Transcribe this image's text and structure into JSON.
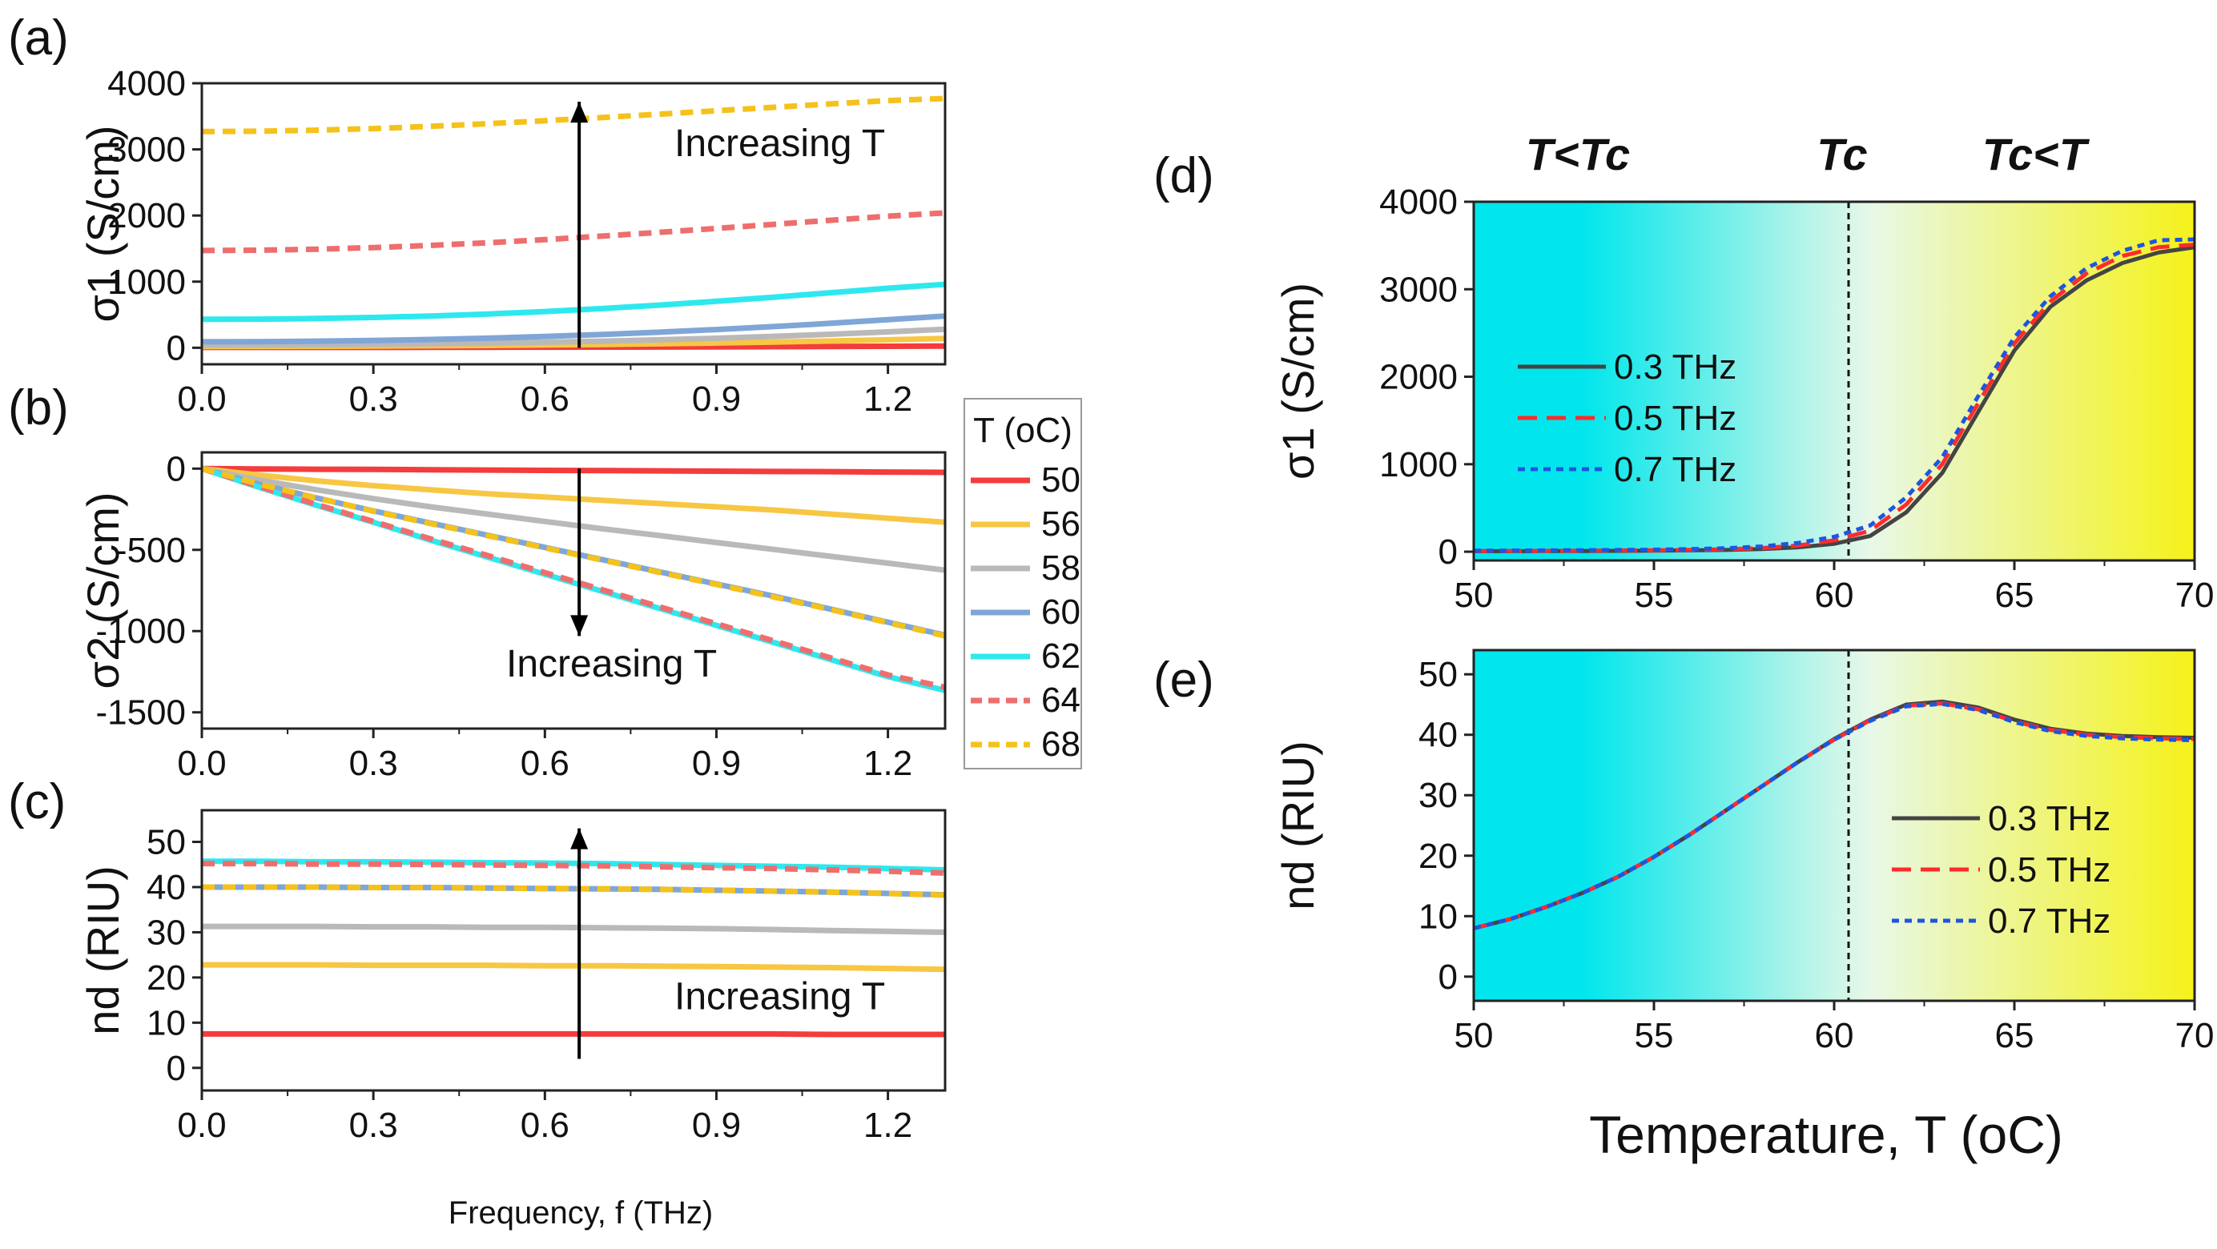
{
  "figure": {
    "panel_labels": [
      "(a)",
      "(b)",
      "(c)",
      "(d)",
      "(e)"
    ],
    "left_xlabel": "Frequency, f (THz)",
    "right_xlabel": "Temperature, T (oC)",
    "annotation": "Increasing T",
    "legend_title": "T (oC)",
    "regions": [
      "T<Tc",
      "Tc",
      "Tc<T"
    ],
    "colors": {
      "t50": "#f43c3c",
      "t56": "#f7c744",
      "t58": "#b9b9b9",
      "t60": "#7fa6d6",
      "t62": "#2ee8ee",
      "t64": "#ee6e6e",
      "t68": "#f5c21b",
      "f03": "#444444",
      "f05": "#ff2b2b",
      "f07": "#1e55e0",
      "bg_cold": "#00e6ec",
      "bg_mid": "#e8f8e8",
      "bg_hot": "#f5f219"
    }
  },
  "chart_data": [
    {
      "id": "a",
      "type": "line",
      "title": "",
      "xlabel": "",
      "ylabel": "σ1 (S/cm)",
      "xlim": [
        0,
        1.3
      ],
      "ylim": [
        -250,
        4000
      ],
      "xticks": [
        "0.0",
        "0.3",
        "0.6",
        "0.9",
        "1.2"
      ],
      "yticks": [
        "0",
        "1000",
        "2000",
        "3000",
        "4000"
      ],
      "x": [
        0,
        0.1,
        0.2,
        0.3,
        0.4,
        0.5,
        0.6,
        0.7,
        0.8,
        0.9,
        1.0,
        1.1,
        1.2,
        1.3
      ],
      "series": [
        {
          "name": "50",
          "style": "solid",
          "values": [
            5,
            5,
            6,
            6,
            7,
            8,
            9,
            10,
            12,
            14,
            16,
            19,
            22,
            25
          ]
        },
        {
          "name": "56",
          "style": "solid",
          "values": [
            20,
            21,
            23,
            26,
            30,
            35,
            42,
            50,
            60,
            72,
            86,
            102,
            120,
            140
          ]
        },
        {
          "name": "58",
          "style": "solid",
          "values": [
            40,
            42,
            46,
            52,
            60,
            70,
            84,
            100,
            120,
            144,
            172,
            204,
            240,
            280
          ]
        },
        {
          "name": "60",
          "style": "solid",
          "values": [
            90,
            93,
            100,
            110,
            125,
            145,
            170,
            200,
            235,
            275,
            320,
            370,
            425,
            480
          ]
        },
        {
          "name": "62",
          "style": "solid",
          "values": [
            430,
            433,
            442,
            458,
            480,
            510,
            548,
            593,
            645,
            703,
            765,
            832,
            900,
            960
          ]
        },
        {
          "name": "64",
          "style": "dash",
          "values": [
            1470,
            1475,
            1490,
            1515,
            1548,
            1588,
            1635,
            1688,
            1745,
            1805,
            1866,
            1928,
            1990,
            2040
          ]
        },
        {
          "name": "68",
          "style": "dash",
          "values": [
            3270,
            3275,
            3290,
            3315,
            3348,
            3388,
            3433,
            3482,
            3533,
            3585,
            3637,
            3688,
            3738,
            3770
          ]
        }
      ],
      "annotation": {
        "text": "Increasing T",
        "arrow": "up",
        "x": 0.66
      }
    },
    {
      "id": "b",
      "type": "line",
      "title": "",
      "xlabel": "",
      "ylabel": "σ2 (S/cm)",
      "xlim": [
        0,
        1.3
      ],
      "ylim": [
        -1600,
        100
      ],
      "xticks": [
        "0.0",
        "0.3",
        "0.6",
        "0.9",
        "1.2"
      ],
      "yticks": [
        "0",
        "-500",
        "-1000",
        "-1500"
      ],
      "x": [
        0,
        0.1,
        0.2,
        0.3,
        0.4,
        0.5,
        0.6,
        0.7,
        0.8,
        0.9,
        1.0,
        1.1,
        1.2,
        1.3
      ],
      "series": [
        {
          "name": "50",
          "style": "solid",
          "values": [
            0,
            -2,
            -4,
            -5,
            -7,
            -9,
            -11,
            -12,
            -14,
            -16,
            -18,
            -19,
            -21,
            -23
          ]
        },
        {
          "name": "56",
          "style": "solid",
          "values": [
            0,
            -40,
            -75,
            -105,
            -130,
            -155,
            -175,
            -195,
            -215,
            -235,
            -255,
            -280,
            -305,
            -330
          ]
        },
        {
          "name": "58",
          "style": "solid",
          "values": [
            0,
            -70,
            -130,
            -185,
            -235,
            -280,
            -325,
            -370,
            -412,
            -455,
            -497,
            -540,
            -582,
            -625
          ]
        },
        {
          "name": "60",
          "style": "solid",
          "values": [
            0,
            -95,
            -180,
            -260,
            -335,
            -410,
            -485,
            -560,
            -635,
            -710,
            -785,
            -865,
            -945,
            -1025
          ]
        },
        {
          "name": "62",
          "style": "solid",
          "values": [
            0,
            -115,
            -225,
            -330,
            -440,
            -545,
            -650,
            -755,
            -860,
            -965,
            -1070,
            -1175,
            -1280,
            -1365
          ]
        },
        {
          "name": "64",
          "style": "dash",
          "values": [
            0,
            -110,
            -220,
            -325,
            -432,
            -535,
            -640,
            -745,
            -850,
            -955,
            -1060,
            -1165,
            -1270,
            -1345
          ]
        },
        {
          "name": "68",
          "style": "dash",
          "values": [
            0,
            -95,
            -180,
            -262,
            -338,
            -413,
            -488,
            -563,
            -638,
            -713,
            -790,
            -868,
            -948,
            -1030
          ]
        }
      ],
      "annotation": {
        "text": "Increasing T",
        "arrow": "down",
        "x": 0.66
      }
    },
    {
      "id": "c",
      "type": "line",
      "title": "",
      "xlabel": "Frequency, f (THz)",
      "ylabel": "nd (RIU)",
      "xlim": [
        0,
        1.3
      ],
      "ylim": [
        -5,
        57
      ],
      "xticks": [
        "0.0",
        "0.3",
        "0.6",
        "0.9",
        "1.2"
      ],
      "yticks": [
        "0",
        "10",
        "20",
        "30",
        "40",
        "50"
      ],
      "x": [
        0,
        0.1,
        0.2,
        0.3,
        0.4,
        0.5,
        0.6,
        0.7,
        0.8,
        0.9,
        1.0,
        1.1,
        1.2,
        1.3
      ],
      "series": [
        {
          "name": "50",
          "style": "solid",
          "values": [
            7.5,
            7.5,
            7.5,
            7.5,
            7.5,
            7.5,
            7.5,
            7.5,
            7.5,
            7.5,
            7.5,
            7.4,
            7.4,
            7.4
          ]
        },
        {
          "name": "56",
          "style": "solid",
          "values": [
            22.8,
            22.8,
            22.8,
            22.7,
            22.7,
            22.7,
            22.6,
            22.6,
            22.5,
            22.4,
            22.3,
            22.2,
            22.0,
            21.8
          ]
        },
        {
          "name": "58",
          "style": "solid",
          "values": [
            31.3,
            31.3,
            31.3,
            31.2,
            31.2,
            31.1,
            31.1,
            31.0,
            30.9,
            30.8,
            30.6,
            30.4,
            30.2,
            30.0
          ]
        },
        {
          "name": "60",
          "style": "solid",
          "values": [
            40.0,
            40.0,
            40.0,
            39.9,
            39.9,
            39.8,
            39.7,
            39.6,
            39.5,
            39.3,
            39.1,
            38.9,
            38.6,
            38.3
          ]
        },
        {
          "name": "62",
          "style": "solid",
          "values": [
            45.7,
            45.7,
            45.6,
            45.6,
            45.5,
            45.4,
            45.3,
            45.2,
            45.0,
            44.8,
            44.6,
            44.4,
            44.1,
            43.8
          ]
        },
        {
          "name": "64",
          "style": "dash",
          "values": [
            45.2,
            45.2,
            45.1,
            45.1,
            45.0,
            44.9,
            44.8,
            44.7,
            44.5,
            44.3,
            44.1,
            43.8,
            43.5,
            43.1
          ]
        },
        {
          "name": "68",
          "style": "dash",
          "values": [
            40.0,
            40.0,
            40.0,
            39.9,
            39.9,
            39.8,
            39.7,
            39.6,
            39.5,
            39.3,
            39.1,
            38.9,
            38.6,
            38.2
          ]
        }
      ],
      "annotation": {
        "text": "Increasing T",
        "arrow": "up",
        "x": 0.66
      }
    },
    {
      "id": "d",
      "type": "line",
      "title": "",
      "xlabel": "",
      "ylabel": "σ1 (S/cm)",
      "xlim": [
        50,
        70
      ],
      "ylim": [
        -100,
        4000
      ],
      "xticks": [
        "50",
        "55",
        "60",
        "65",
        "70"
      ],
      "yticks": [
        "0",
        "1000",
        "2000",
        "3000",
        "4000"
      ],
      "vline": 60.4,
      "x": [
        50,
        51,
        52,
        53,
        54,
        55,
        56,
        57,
        58,
        59,
        60,
        61,
        62,
        63,
        64,
        65,
        66,
        67,
        68,
        69,
        70
      ],
      "series": [
        {
          "name": "0.3 THz",
          "style": "solid",
          "values": [
            5,
            6,
            7,
            8,
            10,
            12,
            15,
            20,
            30,
            50,
            90,
            180,
            450,
            900,
            1600,
            2300,
            2800,
            3100,
            3300,
            3420,
            3480
          ]
        },
        {
          "name": "0.5 THz",
          "style": "dash",
          "values": [
            8,
            9,
            10,
            12,
            14,
            17,
            21,
            28,
            42,
            70,
            130,
            240,
            540,
            1000,
            1700,
            2380,
            2860,
            3180,
            3380,
            3480,
            3510
          ]
        },
        {
          "name": "0.7 THz",
          "style": "dot",
          "values": [
            12,
            13,
            15,
            17,
            20,
            24,
            30,
            40,
            60,
            100,
            170,
            300,
            620,
            1080,
            1780,
            2450,
            2920,
            3240,
            3440,
            3560,
            3570
          ]
        }
      ]
    },
    {
      "id": "e",
      "type": "line",
      "title": "",
      "xlabel": "Temperature, T (oC)",
      "ylabel": "nd (RIU)",
      "xlim": [
        50,
        70
      ],
      "ylim": [
        -4,
        54
      ],
      "xticks": [
        "50",
        "55",
        "60",
        "65",
        "70"
      ],
      "yticks": [
        "0",
        "10",
        "20",
        "30",
        "40",
        "50"
      ],
      "vline": 60.4,
      "x": [
        50,
        51,
        52,
        53,
        54,
        55,
        56,
        57,
        58,
        59,
        60,
        61,
        62,
        63,
        64,
        65,
        66,
        67,
        68,
        69,
        70
      ],
      "series": [
        {
          "name": "0.3 THz",
          "style": "solid",
          "values": [
            8,
            9.5,
            11.5,
            13.8,
            16.5,
            19.8,
            23.5,
            27.5,
            31.5,
            35.5,
            39.3,
            42.5,
            45.0,
            45.5,
            44.5,
            42.5,
            41.0,
            40.2,
            39.8,
            39.6,
            39.5
          ]
        },
        {
          "name": "0.5 THz",
          "style": "dash",
          "values": [
            8,
            9.5,
            11.5,
            13.8,
            16.5,
            19.8,
            23.5,
            27.5,
            31.5,
            35.5,
            39.2,
            42.4,
            44.8,
            45.2,
            44.2,
            42.2,
            40.8,
            40.0,
            39.6,
            39.4,
            39.3
          ]
        },
        {
          "name": "0.7 THz",
          "style": "dot",
          "values": [
            8,
            9.5,
            11.5,
            13.8,
            16.5,
            19.8,
            23.5,
            27.5,
            31.5,
            35.5,
            39.2,
            42.3,
            44.7,
            45.1,
            44.1,
            42.1,
            40.6,
            39.8,
            39.4,
            39.2,
            39.1
          ]
        }
      ]
    }
  ]
}
